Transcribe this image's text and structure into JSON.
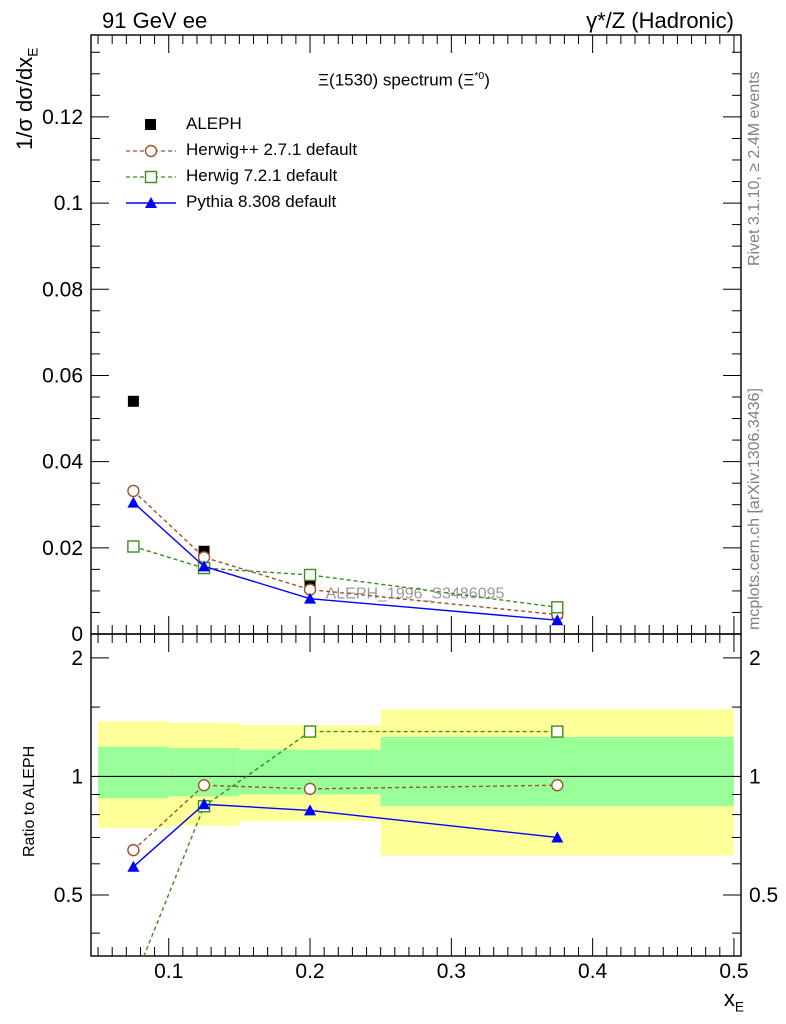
{
  "header": {
    "left": "91 GeV ee",
    "right": "γ*/Z (Hadronic)"
  },
  "side_text": {
    "rivet": "Rivet 3.1.10, ≥ 2.4M events",
    "mcplots": "mcplots.cern.ch [arXiv:1306.3436]"
  },
  "chart_data": {
    "type": "line",
    "title": "Ξ(1530) spectrum (Ξ*0)",
    "title_main": "Ξ(1530) spectrum (Ξ",
    "title_sup": "*0",
    "title_close": ")",
    "ylabel": "1/σ dσ/dx_E",
    "ylabel_main": "1/σ dσ/dx",
    "ylabel_sub": "E",
    "xlabel": "x_E",
    "xlabel_main": "x",
    "xlabel_sub": "E",
    "ratio_ylabel": "Ratio to ALEPH",
    "watermark": "ALEPH_1996_S3486095",
    "xlim": [
      0.045,
      0.505
    ],
    "ylim": [
      0,
      0.139
    ],
    "ratio_ylim": [
      0.35,
      2.3
    ],
    "x_ticks": [
      "0.1",
      "0.2",
      "0.3",
      "0.4",
      "0.5"
    ],
    "y_ticks": [
      "0",
      "0.02",
      "0.04",
      "0.06",
      "0.08",
      "0.1",
      "0.12"
    ],
    "ratio_ticks": [
      "0.5",
      "1",
      "2"
    ],
    "data": {
      "name": "ALEPH",
      "x": [
        0.075,
        0.125,
        0.2,
        0.375
      ],
      "y": [
        0.054,
        0.0192,
        0.0112,
        0.0048
      ],
      "x_bins": [
        [
          0.05,
          0.1
        ],
        [
          0.1,
          0.15
        ],
        [
          0.15,
          0.25
        ],
        [
          0.25,
          0.5
        ]
      ],
      "band_inner": [
        [
          0.88,
          1.19
        ],
        [
          0.89,
          1.18
        ],
        [
          0.9,
          1.17
        ],
        [
          0.84,
          1.26
        ]
      ],
      "band_outer": [
        [
          0.74,
          1.38
        ],
        [
          0.75,
          1.37
        ],
        [
          0.77,
          1.35
        ],
        [
          0.63,
          1.48
        ]
      ]
    },
    "series": [
      {
        "name": "Herwig++ 2.7.1 default",
        "color": "#a0522d",
        "marker": "circle-open",
        "dashed": true,
        "x": [
          0.075,
          0.125,
          0.2,
          0.375
        ],
        "y": [
          0.0332,
          0.0178,
          0.0103,
          0.0045
        ],
        "ratio": [
          0.65,
          0.95,
          0.93,
          0.95
        ]
      },
      {
        "name": "Herwig 7.2.1 default",
        "color": "#3d8c1e",
        "marker": "square-open",
        "dashed": true,
        "x": [
          0.075,
          0.125,
          0.2,
          0.375
        ],
        "y": [
          0.0203,
          0.0153,
          0.0137,
          0.0062
        ],
        "ratio": [
          0.3,
          0.84,
          1.3,
          1.3
        ]
      },
      {
        "name": "Pythia 8.308 default",
        "color": "#0000ff",
        "marker": "triangle-filled",
        "dashed": false,
        "x": [
          0.075,
          0.125,
          0.2,
          0.375
        ],
        "y": [
          0.0305,
          0.0157,
          0.0082,
          0.0032
        ],
        "ratio": [
          0.59,
          0.85,
          0.82,
          0.7
        ]
      }
    ],
    "colors": {
      "band_inner": "#99ff99",
      "band_outer": "#ffff99",
      "data": "#000000",
      "watermark": "#999999"
    }
  }
}
